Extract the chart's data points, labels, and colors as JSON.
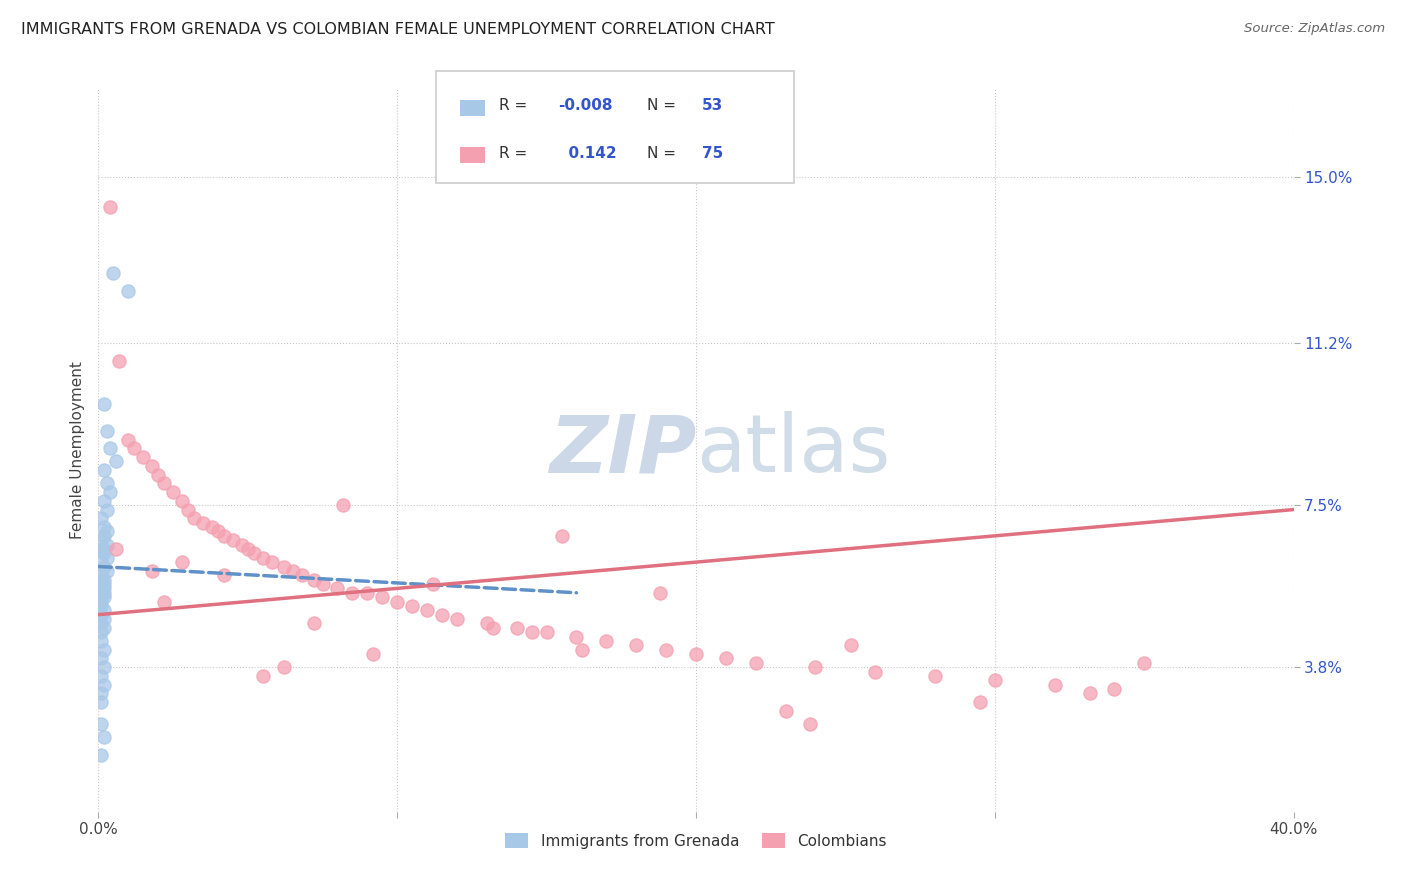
{
  "title": "IMMIGRANTS FROM GRENADA VS COLOMBIAN FEMALE UNEMPLOYMENT CORRELATION CHART",
  "source": "Source: ZipAtlas.com",
  "ylabel": "Female Unemployment",
  "ytick_labels": [
    "15.0%",
    "11.2%",
    "7.5%",
    "3.8%"
  ],
  "ytick_values": [
    0.15,
    0.112,
    0.075,
    0.038
  ],
  "xmin": 0.0,
  "xmax": 0.4,
  "ymin": 0.005,
  "ymax": 0.17,
  "color_blue": "#a8c8e8",
  "color_pink": "#f4a0b0",
  "color_blue_text": "#3355cc",
  "trendline_blue_color": "#6090c8",
  "trendline_pink_color": "#e07080",
  "watermark_color": "#ccd8e8",
  "grenada_x": [
    0.005,
    0.01,
    0.002,
    0.003,
    0.004,
    0.006,
    0.002,
    0.003,
    0.004,
    0.002,
    0.003,
    0.001,
    0.002,
    0.003,
    0.002,
    0.001,
    0.003,
    0.002,
    0.001,
    0.002,
    0.003,
    0.001,
    0.002,
    0.003,
    0.001,
    0.002,
    0.001,
    0.002,
    0.001,
    0.002,
    0.001,
    0.002,
    0.001,
    0.002,
    0.001,
    0.001,
    0.002,
    0.001,
    0.002,
    0.001,
    0.002,
    0.001,
    0.001,
    0.002,
    0.001,
    0.002,
    0.001,
    0.002,
    0.001,
    0.001,
    0.001,
    0.002,
    0.001
  ],
  "grenada_y": [
    0.128,
    0.124,
    0.098,
    0.092,
    0.088,
    0.085,
    0.083,
    0.08,
    0.078,
    0.076,
    0.074,
    0.072,
    0.07,
    0.069,
    0.068,
    0.067,
    0.066,
    0.065,
    0.065,
    0.064,
    0.063,
    0.062,
    0.061,
    0.06,
    0.059,
    0.058,
    0.058,
    0.057,
    0.057,
    0.056,
    0.055,
    0.055,
    0.054,
    0.054,
    0.053,
    0.052,
    0.051,
    0.05,
    0.049,
    0.048,
    0.047,
    0.046,
    0.044,
    0.042,
    0.04,
    0.038,
    0.036,
    0.034,
    0.032,
    0.03,
    0.025,
    0.022,
    0.018
  ],
  "colombian_x": [
    0.004,
    0.007,
    0.01,
    0.012,
    0.015,
    0.018,
    0.02,
    0.022,
    0.025,
    0.028,
    0.03,
    0.032,
    0.035,
    0.038,
    0.04,
    0.042,
    0.045,
    0.048,
    0.05,
    0.052,
    0.055,
    0.058,
    0.062,
    0.065,
    0.068,
    0.072,
    0.075,
    0.08,
    0.085,
    0.09,
    0.095,
    0.1,
    0.105,
    0.11,
    0.115,
    0.12,
    0.13,
    0.14,
    0.15,
    0.16,
    0.17,
    0.18,
    0.19,
    0.2,
    0.21,
    0.22,
    0.24,
    0.26,
    0.28,
    0.3,
    0.32,
    0.34,
    0.295,
    0.155,
    0.055,
    0.082,
    0.028,
    0.072,
    0.112,
    0.162,
    0.238,
    0.042,
    0.092,
    0.132,
    0.006,
    0.022,
    0.062,
    0.188,
    0.252,
    0.332,
    0.018,
    0.145,
    0.35,
    0.23
  ],
  "colombian_y": [
    0.143,
    0.108,
    0.09,
    0.088,
    0.086,
    0.084,
    0.082,
    0.08,
    0.078,
    0.076,
    0.074,
    0.072,
    0.071,
    0.07,
    0.069,
    0.068,
    0.067,
    0.066,
    0.065,
    0.064,
    0.063,
    0.062,
    0.061,
    0.06,
    0.059,
    0.058,
    0.057,
    0.056,
    0.055,
    0.055,
    0.054,
    0.053,
    0.052,
    0.051,
    0.05,
    0.049,
    0.048,
    0.047,
    0.046,
    0.045,
    0.044,
    0.043,
    0.042,
    0.041,
    0.04,
    0.039,
    0.038,
    0.037,
    0.036,
    0.035,
    0.034,
    0.033,
    0.03,
    0.068,
    0.036,
    0.075,
    0.062,
    0.048,
    0.057,
    0.042,
    0.025,
    0.059,
    0.041,
    0.047,
    0.065,
    0.053,
    0.038,
    0.055,
    0.043,
    0.032,
    0.06,
    0.046,
    0.039,
    0.028
  ],
  "blue_trendline_x": [
    0.0,
    0.16
  ],
  "blue_trendline_y": [
    0.061,
    0.055
  ],
  "pink_trendline_x": [
    0.0,
    0.4
  ],
  "pink_trendline_y": [
    0.05,
    0.074
  ]
}
